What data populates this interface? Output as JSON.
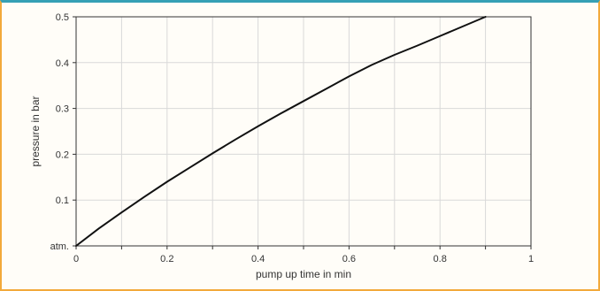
{
  "colors": {
    "frame_border": "#f2a93b",
    "top_border": "#36a0b5",
    "curve": "#111111",
    "grid": "#d9d9d9",
    "axis": "#333333"
  },
  "chart_data": {
    "type": "line",
    "xlabel": "pump up time in min",
    "ylabel": "pressure in bar",
    "xlim": [
      0,
      1
    ],
    "ylim": [
      0,
      0.5
    ],
    "grid": true,
    "x_tick_labels": [
      "0",
      "0.2",
      "0.4",
      "0.6",
      "0.8",
      "1"
    ],
    "x_tick_values": [
      0,
      0.2,
      0.4,
      0.6,
      0.8,
      1
    ],
    "y_tick_labels": [
      "atm.",
      "0.1",
      "0.2",
      "0.3",
      "0.4",
      "0.5"
    ],
    "y_tick_values": [
      0,
      0.1,
      0.2,
      0.3,
      0.4,
      0.5
    ],
    "series": [
      {
        "x": [
          0,
          0.05,
          0.1,
          0.15,
          0.2,
          0.25,
          0.3,
          0.35,
          0.4,
          0.45,
          0.5,
          0.55,
          0.6,
          0.65,
          0.7,
          0.75,
          0.8,
          0.85,
          0.9
        ],
        "y": [
          0,
          0.038,
          0.073,
          0.107,
          0.14,
          0.171,
          0.202,
          0.232,
          0.261,
          0.289,
          0.316,
          0.343,
          0.37,
          0.395,
          0.417,
          0.437,
          0.458,
          0.479,
          0.5
        ]
      }
    ]
  }
}
